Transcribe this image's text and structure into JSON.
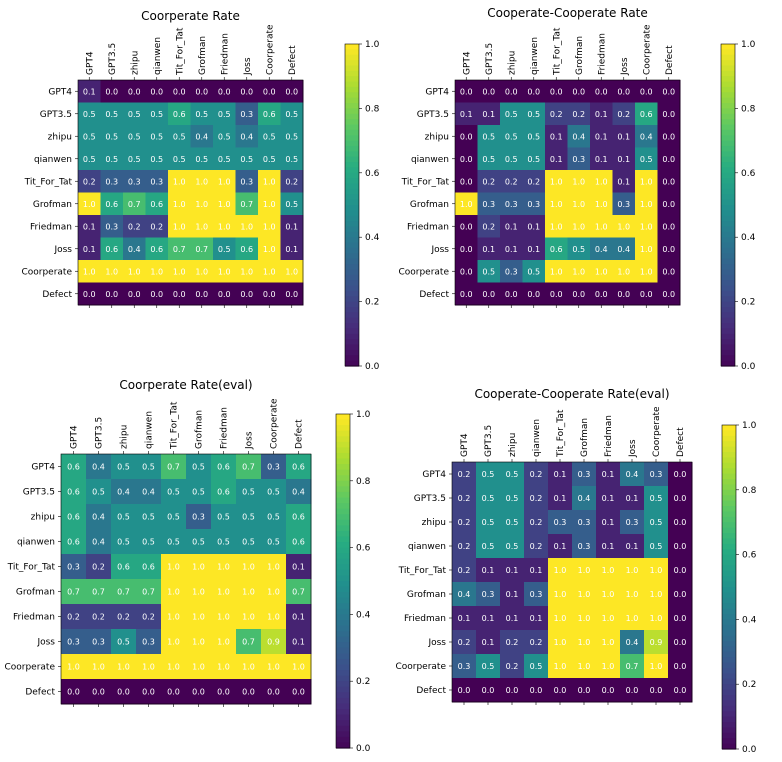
{
  "chart_data": [
    {
      "type": "heatmap",
      "title": "Coorperate Rate",
      "rows": [
        "GPT4",
        "GPT3.5",
        "zhipu",
        "qianwen",
        "Tit_For_Tat",
        "Grofman",
        "Friedman",
        "Joss",
        "Coorperate",
        "Defect"
      ],
      "cols": [
        "GPT4",
        "GPT3.5",
        "zhipu",
        "qianwen",
        "Tit_For_Tat",
        "Grofman",
        "Friedman",
        "Joss",
        "Coorperate",
        "Defect"
      ],
      "values": [
        [
          0.1,
          0.0,
          0.0,
          0.0,
          0.0,
          0.0,
          0.0,
          0.0,
          0.0,
          0.0
        ],
        [
          0.5,
          0.5,
          0.5,
          0.5,
          0.6,
          0.5,
          0.5,
          0.3,
          0.6,
          0.5
        ],
        [
          0.5,
          0.5,
          0.5,
          0.5,
          0.5,
          0.4,
          0.5,
          0.4,
          0.5,
          0.5
        ],
        [
          0.5,
          0.5,
          0.5,
          0.5,
          0.5,
          0.5,
          0.5,
          0.5,
          0.5,
          0.5
        ],
        [
          0.2,
          0.3,
          0.3,
          0.3,
          1.0,
          1.0,
          1.0,
          0.3,
          1.0,
          0.2
        ],
        [
          1.0,
          0.6,
          0.7,
          0.6,
          1.0,
          1.0,
          1.0,
          0.7,
          1.0,
          0.5
        ],
        [
          0.1,
          0.3,
          0.2,
          0.2,
          1.0,
          1.0,
          1.0,
          1.0,
          1.0,
          0.1
        ],
        [
          0.1,
          0.6,
          0.4,
          0.6,
          0.7,
          0.7,
          0.5,
          0.6,
          1.0,
          0.1
        ],
        [
          1.0,
          1.0,
          1.0,
          1.0,
          1.0,
          1.0,
          1.0,
          1.0,
          1.0,
          1.0
        ],
        [
          0.0,
          0.0,
          0.0,
          0.0,
          0.0,
          0.0,
          0.0,
          0.0,
          0.0,
          0.0
        ]
      ],
      "colorbar": {
        "min": 0.0,
        "max": 1.0,
        "ticks": [
          "0.0",
          "0.2",
          "0.4",
          "0.6",
          "0.8",
          "1.0"
        ]
      }
    },
    {
      "type": "heatmap",
      "title": "Cooperate-Cooperate Rate",
      "rows": [
        "GPT4",
        "GPT3.5",
        "zhipu",
        "qianwen",
        "Tit_For_Tat",
        "Grofman",
        "Friedman",
        "Joss",
        "Coorperate",
        "Defect"
      ],
      "cols": [
        "GPT4",
        "GPT3.5",
        "zhipu",
        "qianwen",
        "Tit_For_Tat",
        "Grofman",
        "Friedman",
        "Joss",
        "Coorperate",
        "Defect"
      ],
      "values": [
        [
          0.0,
          0.0,
          0.0,
          0.0,
          0.0,
          0.0,
          0.0,
          0.0,
          0.0,
          0.0
        ],
        [
          0.1,
          0.1,
          0.5,
          0.5,
          0.2,
          0.2,
          0.1,
          0.2,
          0.6,
          0.0
        ],
        [
          0.0,
          0.5,
          0.5,
          0.5,
          0.1,
          0.4,
          0.1,
          0.1,
          0.4,
          0.0
        ],
        [
          0.0,
          0.5,
          0.5,
          0.5,
          0.1,
          0.3,
          0.1,
          0.1,
          0.5,
          0.0
        ],
        [
          0.0,
          0.2,
          0.2,
          0.2,
          1.0,
          1.0,
          1.0,
          0.1,
          1.0,
          0.0
        ],
        [
          1.0,
          0.3,
          0.3,
          0.3,
          1.0,
          1.0,
          1.0,
          0.3,
          1.0,
          0.0
        ],
        [
          0.0,
          0.2,
          0.1,
          0.1,
          1.0,
          1.0,
          1.0,
          1.0,
          1.0,
          0.0
        ],
        [
          0.0,
          0.1,
          0.1,
          0.1,
          0.6,
          0.5,
          0.4,
          0.4,
          1.0,
          0.0
        ],
        [
          0.0,
          0.5,
          0.3,
          0.5,
          1.0,
          1.0,
          1.0,
          1.0,
          1.0,
          0.0
        ],
        [
          0.0,
          0.0,
          0.0,
          0.0,
          0.0,
          0.0,
          0.0,
          0.0,
          0.0,
          0.0
        ]
      ],
      "colorbar": {
        "min": 0.0,
        "max": 1.0,
        "ticks": [
          "0.0",
          "0.2",
          "0.4",
          "0.6",
          "0.8",
          "1.0"
        ]
      }
    },
    {
      "type": "heatmap",
      "title": "Coorperate Rate(eval)",
      "rows": [
        "GPT4",
        "GPT3.5",
        "zhipu",
        "qianwen",
        "Tit_For_Tat",
        "Grofman",
        "Friedman",
        "Joss",
        "Coorperate",
        "Defect"
      ],
      "cols": [
        "GPT4",
        "GPT3.5",
        "zhipu",
        "qianwen",
        "Tit_For_Tat",
        "Grofman",
        "Friedman",
        "Joss",
        "Coorperate",
        "Defect"
      ],
      "values": [
        [
          0.6,
          0.4,
          0.5,
          0.5,
          0.7,
          0.5,
          0.6,
          0.7,
          0.3,
          0.6
        ],
        [
          0.6,
          0.5,
          0.4,
          0.4,
          0.5,
          0.5,
          0.6,
          0.5,
          0.5,
          0.4
        ],
        [
          0.6,
          0.4,
          0.5,
          0.5,
          0.5,
          0.3,
          0.5,
          0.5,
          0.5,
          0.6
        ],
        [
          0.6,
          0.4,
          0.5,
          0.5,
          0.5,
          0.5,
          0.5,
          0.5,
          0.5,
          0.6
        ],
        [
          0.3,
          0.2,
          0.6,
          0.6,
          1.0,
          1.0,
          1.0,
          1.0,
          1.0,
          0.1
        ],
        [
          0.7,
          0.7,
          0.7,
          0.7,
          1.0,
          1.0,
          1.0,
          1.0,
          1.0,
          0.7
        ],
        [
          0.2,
          0.2,
          0.2,
          0.2,
          1.0,
          1.0,
          1.0,
          1.0,
          1.0,
          0.1
        ],
        [
          0.3,
          0.3,
          0.5,
          0.3,
          1.0,
          1.0,
          1.0,
          0.7,
          0.9,
          0.1
        ],
        [
          1.0,
          1.0,
          1.0,
          1.0,
          1.0,
          1.0,
          1.0,
          1.0,
          1.0,
          1.0
        ],
        [
          0.0,
          0.0,
          0.0,
          0.0,
          0.0,
          0.0,
          0.0,
          0.0,
          0.0,
          0.0
        ]
      ],
      "colorbar": {
        "min": 0.0,
        "max": 1.0,
        "ticks": [
          "0.0",
          "0.2",
          "0.4",
          "0.6",
          "0.8",
          "1.0"
        ]
      }
    },
    {
      "type": "heatmap",
      "title": "Cooperate-Cooperate Rate(eval)",
      "rows": [
        "GPT4",
        "GPT3.5",
        "zhipu",
        "qianwen",
        "Tit_For_Tat",
        "Grofman",
        "Friedman",
        "Joss",
        "Coorperate",
        "Defect"
      ],
      "cols": [
        "GPT4",
        "GPT3.5",
        "zhipu",
        "qianwen",
        "Tit_For_Tat",
        "Grofman",
        "Friedman",
        "Joss",
        "Coorperate",
        "Defect"
      ],
      "values": [
        [
          0.2,
          0.5,
          0.5,
          0.2,
          0.1,
          0.3,
          0.1,
          0.4,
          0.3,
          0.0
        ],
        [
          0.2,
          0.5,
          0.5,
          0.2,
          0.1,
          0.4,
          0.1,
          0.1,
          0.5,
          0.0
        ],
        [
          0.2,
          0.5,
          0.5,
          0.2,
          0.3,
          0.3,
          0.1,
          0.3,
          0.5,
          0.0
        ],
        [
          0.2,
          0.5,
          0.5,
          0.2,
          0.1,
          0.3,
          0.1,
          0.1,
          0.5,
          0.0
        ],
        [
          0.2,
          0.1,
          0.1,
          0.1,
          1.0,
          1.0,
          1.0,
          1.0,
          1.0,
          0.0
        ],
        [
          0.4,
          0.3,
          0.1,
          0.3,
          1.0,
          1.0,
          1.0,
          1.0,
          1.0,
          0.0
        ],
        [
          0.1,
          0.1,
          0.1,
          0.1,
          1.0,
          1.0,
          1.0,
          1.0,
          1.0,
          0.0
        ],
        [
          0.2,
          0.1,
          0.2,
          0.2,
          1.0,
          1.0,
          1.0,
          0.4,
          0.9,
          0.0
        ],
        [
          0.3,
          0.5,
          0.2,
          0.5,
          1.0,
          1.0,
          1.0,
          0.7,
          1.0,
          0.0
        ],
        [
          0.0,
          0.0,
          0.0,
          0.0,
          0.0,
          0.0,
          0.0,
          0.0,
          0.0,
          0.0
        ]
      ],
      "colorbar": {
        "min": 0.0,
        "max": 1.0,
        "ticks": [
          "0.0",
          "0.2",
          "0.4",
          "0.6",
          "0.8",
          "1.0"
        ]
      }
    }
  ]
}
